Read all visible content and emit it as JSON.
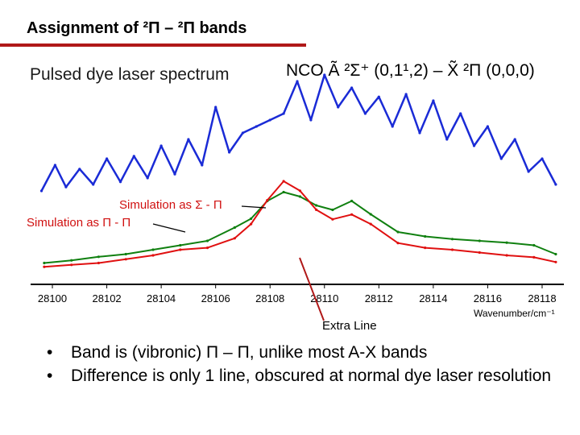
{
  "title": "Assignment of ²Π – ²Π bands",
  "subtitle": "Pulsed dye laser spectrum",
  "band_label": "NCO Ã ²Σ⁺ (0,1¹,2) – X̃ ²Π (0,0,0)",
  "annotations": {
    "sigma_pi": "Simulation as Σ - Π",
    "pi_pi": "Simulation as Π - Π",
    "extra_line": "Extra Line"
  },
  "bullets": [
    "Band is (vibronic) Π – Π, unlike most A-X bands",
    "Difference is only 1 line, obscured at normal dye laser resolution"
  ],
  "colors": {
    "experiment": "#1a2bd6",
    "sigma_pi": "#e01010",
    "pi_pi": "#108010",
    "rule": "#b01818"
  },
  "chart_data": {
    "type": "line",
    "xlabel": "Wavenumber/cm⁻¹",
    "xlim": [
      28099.2,
      28118.8
    ],
    "tick_labels": [
      "28100",
      "28102",
      "28104",
      "28106",
      "28108",
      "28110",
      "28112",
      "28114",
      "28116",
      "28118"
    ],
    "tick_values": [
      28100,
      28102,
      28104,
      28106,
      28108,
      28110,
      28112,
      28114,
      28116,
      28118
    ],
    "series": [
      {
        "key": "experiment",
        "x": [
          28099.6,
          28100.1,
          28100.5,
          28101.0,
          28101.5,
          28102.0,
          28102.5,
          28103.0,
          28103.5,
          28104.0,
          28104.5,
          28105.0,
          28105.5,
          28106.0,
          28106.5,
          28107.0,
          28107.5,
          28108.0,
          28108.5,
          28109.0,
          28109.5,
          28110.0,
          28110.5,
          28111.0,
          28111.5,
          28112.0,
          28112.5,
          28113.0,
          28113.5,
          28114.0,
          28114.5,
          28115.0,
          28115.5,
          28116.0,
          28116.5,
          28117.0,
          28117.5,
          28118.0,
          28118.5
        ],
        "y": [
          0.05,
          0.25,
          0.08,
          0.22,
          0.1,
          0.3,
          0.12,
          0.32,
          0.15,
          0.4,
          0.18,
          0.45,
          0.25,
          0.7,
          0.35,
          0.5,
          0.55,
          0.6,
          0.65,
          0.9,
          0.6,
          0.95,
          0.7,
          0.85,
          0.65,
          0.78,
          0.55,
          0.8,
          0.5,
          0.75,
          0.45,
          0.65,
          0.4,
          0.55,
          0.3,
          0.45,
          0.2,
          0.3,
          0.1
        ]
      },
      {
        "key": "sigma_pi",
        "x": [
          28099.7,
          28100.7,
          28101.7,
          28102.7,
          28103.7,
          28104.7,
          28105.7,
          28106.7,
          28107.3,
          28107.9,
          28108.5,
          28109.1,
          28109.7,
          28110.3,
          28111.0,
          28111.7,
          28112.7,
          28113.7,
          28114.7,
          28115.7,
          28116.7,
          28117.7,
          28118.5
        ],
        "y": [
          0.1,
          0.12,
          0.14,
          0.18,
          0.22,
          0.28,
          0.3,
          0.4,
          0.55,
          0.8,
          1.0,
          0.9,
          0.7,
          0.6,
          0.65,
          0.55,
          0.35,
          0.3,
          0.28,
          0.25,
          0.22,
          0.2,
          0.15
        ]
      },
      {
        "key": "pi_pi",
        "x": [
          28099.7,
          28100.7,
          28101.7,
          28102.7,
          28103.7,
          28104.7,
          28105.7,
          28106.7,
          28107.3,
          28107.9,
          28108.5,
          28109.1,
          28109.7,
          28110.3,
          28111.0,
          28111.7,
          28112.7,
          28113.7,
          28114.7,
          28115.7,
          28116.7,
          28117.7,
          28118.5
        ],
        "y": [
          0.15,
          0.18,
          0.22,
          0.25,
          0.3,
          0.35,
          0.4,
          0.55,
          0.65,
          0.85,
          0.95,
          0.9,
          0.8,
          0.75,
          0.85,
          0.7,
          0.5,
          0.45,
          0.42,
          0.4,
          0.38,
          0.35,
          0.25
        ]
      }
    ]
  }
}
